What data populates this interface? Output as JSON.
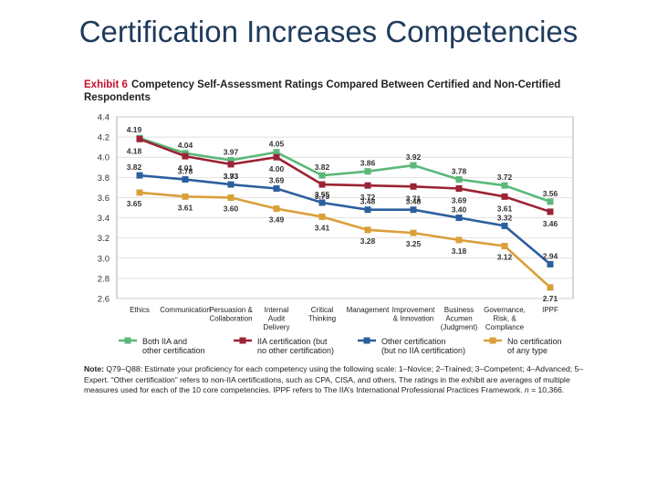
{
  "slide": {
    "title": "Certification Increases Competencies"
  },
  "exhibit": {
    "number": "Exhibit 6",
    "title": "Competency Self-Assessment Ratings Compared Between Certified and Non-Certified Respondents"
  },
  "chart_data": {
    "type": "line",
    "categories": [
      [
        "Ethics"
      ],
      [
        "Communication"
      ],
      [
        "Persuasion &",
        "Collaboration"
      ],
      [
        "Internal",
        "Audit",
        "Delivery"
      ],
      [
        "Critical",
        "Thinking"
      ],
      [
        "Management"
      ],
      [
        "Improvement",
        "& Innovation"
      ],
      [
        "Business",
        "Acumen",
        "(Judgment)"
      ],
      [
        "Governance,",
        "Risk, &",
        "Compliance"
      ],
      [
        "IPPF"
      ]
    ],
    "ylim": [
      2.6,
      4.4
    ],
    "yticks": [
      "2.6",
      "2.8",
      "3.0",
      "3.2",
      "3.4",
      "3.6",
      "3.8",
      "4.0",
      "4.2",
      "4.4"
    ],
    "grid": true,
    "legend_position": "bottom",
    "series": [
      {
        "name": "Both IIA and other certification",
        "legend_lines": [
          "Both IIA and",
          "other certification"
        ],
        "color": "#5bb87a",
        "values": [
          4.19,
          4.04,
          3.97,
          4.05,
          3.82,
          3.86,
          3.92,
          3.78,
          3.72,
          3.56
        ],
        "labels": [
          "4.19",
          "4.04",
          "3.97",
          "4.05",
          "3.82",
          "3.86",
          "3.92",
          "3.78",
          "3.72",
          "3.56"
        ]
      },
      {
        "name": "IIA certification (but no other certification)",
        "legend_lines": [
          "IIA certification (but",
          "no other certification)"
        ],
        "color": "#9b2335",
        "values": [
          4.18,
          4.01,
          3.93,
          4.0,
          3.73,
          3.72,
          3.71,
          3.69,
          3.61,
          3.46
        ],
        "labels": [
          "4.18",
          "4.01",
          "3.93",
          "4.00",
          "3.73",
          "3.72",
          "3.71",
          "3.69",
          "3.61",
          "3.46"
        ]
      },
      {
        "name": "Other certification (but no IIA certification)",
        "legend_lines": [
          "Other certification",
          "(but no IIA certification)"
        ],
        "color": "#2c5f9e",
        "values": [
          3.82,
          3.78,
          3.73,
          3.69,
          3.55,
          3.48,
          3.48,
          3.4,
          3.32,
          2.94
        ],
        "labels": [
          "3.82",
          "3.78",
          "3.73",
          "3.69",
          "3.55",
          "3.48",
          "3.48",
          "3.40",
          "3.32",
          "2.94"
        ]
      },
      {
        "name": "No certification of any type",
        "legend_lines": [
          "No certification",
          "of any type"
        ],
        "color": "#d9a03a",
        "values": [
          3.65,
          3.61,
          3.6,
          3.49,
          3.41,
          3.28,
          3.25,
          3.18,
          3.12,
          2.71
        ],
        "labels": [
          "3.65",
          "3.61",
          "3.60",
          "3.49",
          "3.41",
          "3.28",
          "3.25",
          "3.18",
          "3.12",
          "2.71"
        ]
      }
    ]
  },
  "note": {
    "lead": "Note:",
    "line1": " Q79–Q88: Estimate your proficiency for each competency using the following scale: 1–Novice; 2–Trained; 3–Competent; 4–Advanced; 5–Expert. “Other certification” refers to non-IIA certifications, such as CPA, CISA, and others. The ratings in the exhibit are averages of multiple measures used for each of the 10 core competencies. IPPF refers to The IIA’s International Professional Practices Framework. ",
    "n_label": "n",
    "n_value": " = 10,366."
  }
}
